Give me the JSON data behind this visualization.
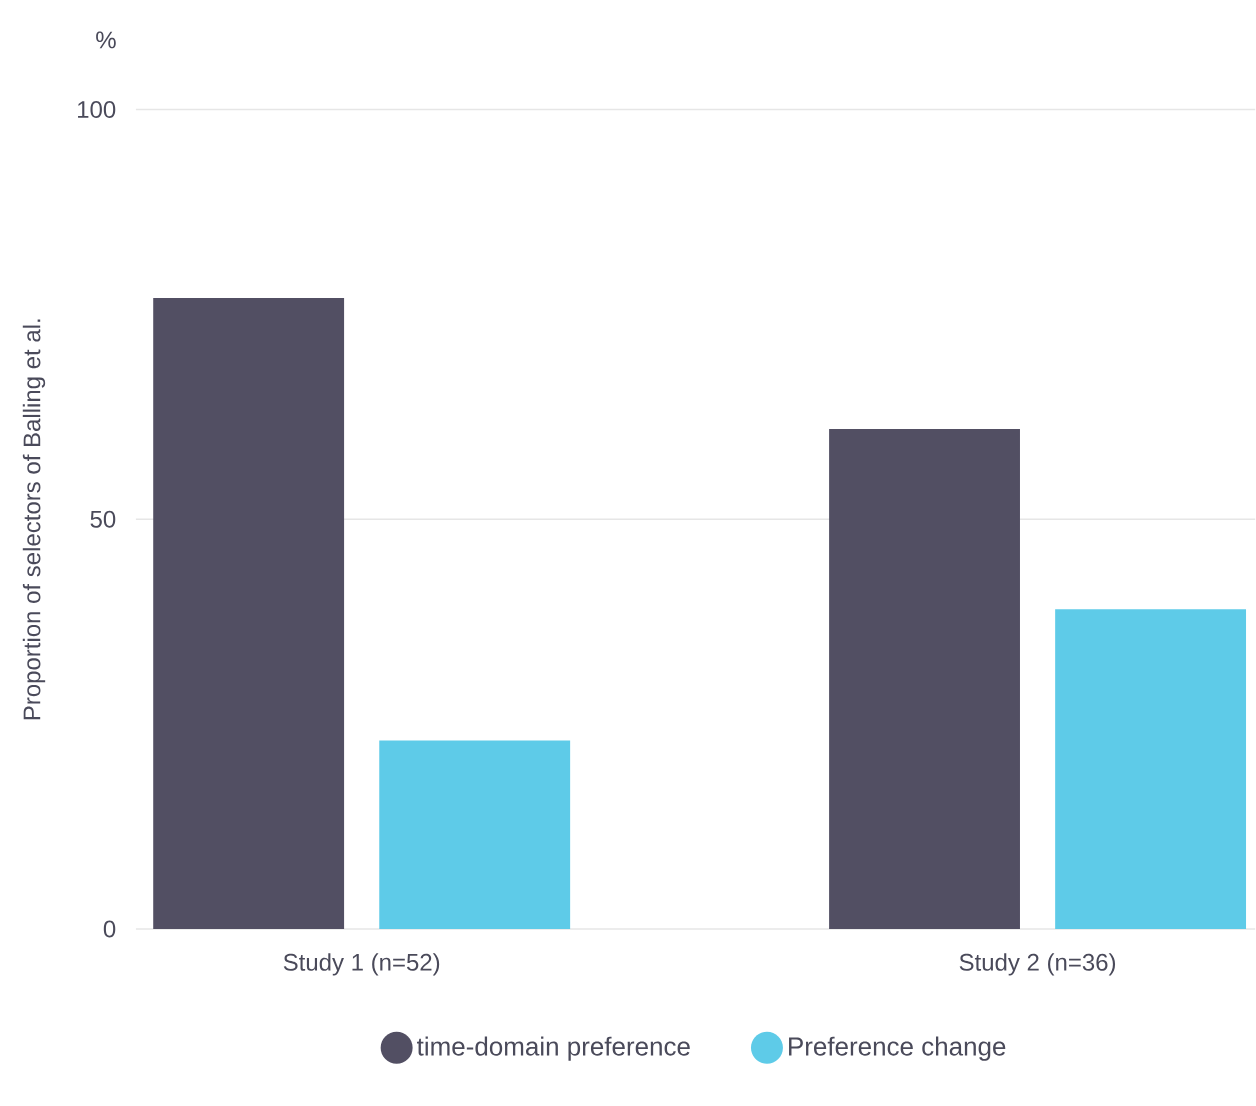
{
  "chart_data": {
    "type": "bar",
    "ylabel": "Proportion of selectors of Balling et al.",
    "annotations": [
      "%"
    ],
    "categories": [
      "Study 1 (n=52)",
      "Study 2 (n=36)"
    ],
    "series": [
      {
        "name": "time-domain preference",
        "color": "#524f63",
        "values": [
          77,
          61
        ]
      },
      {
        "name": "Preference change",
        "color": "#5ecbe8",
        "values": [
          23,
          39
        ]
      }
    ],
    "ylim": [
      0,
      100
    ],
    "yticks": [
      0,
      50,
      100
    ],
    "grid": "y",
    "legend": "bottom"
  }
}
